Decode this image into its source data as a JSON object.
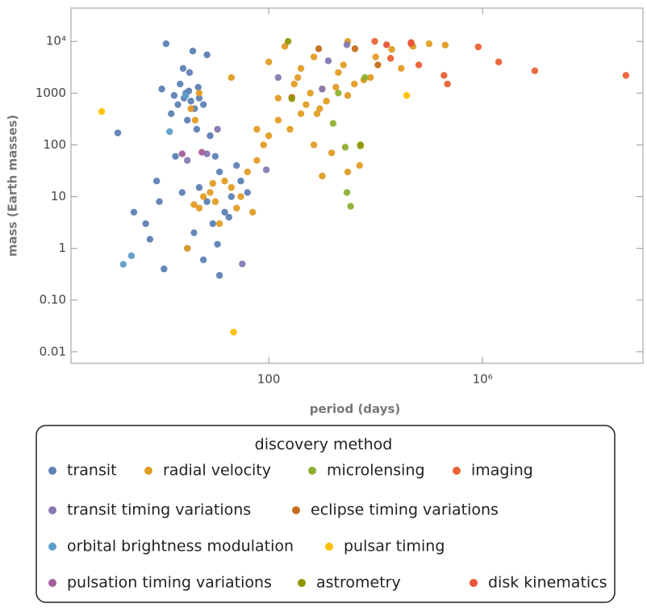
{
  "chart_data": {
    "type": "scatter",
    "xlabel": "period (days)",
    "ylabel": "mass (Earth masses)",
    "legend_title": "discovery method",
    "log_x": true,
    "log_y": true,
    "xlim": [
      0.02,
      1000000000
    ],
    "ylim": [
      0.006,
      44000
    ],
    "xticks": [
      100,
      {
        "value": 1000000,
        "label": "10⁶"
      }
    ],
    "yticks": [
      {
        "value": 0.01,
        "label": "0.01"
      },
      {
        "value": 0.1,
        "label": "0.10"
      },
      1,
      10,
      100,
      1000,
      {
        "value": 10000,
        "label": "10⁴"
      }
    ],
    "series": [
      {
        "name": "transit",
        "color": "#5e81b5",
        "x": [
          3.5,
          2.8,
          4.1,
          3.0,
          2.2,
          5.0,
          1.5,
          3.3,
          4.5,
          6,
          2.5,
          1.2,
          3.8,
          7,
          1.0,
          2.0,
          8,
          10,
          12,
          5,
          7,
          15,
          20,
          9,
          4,
          3,
          6,
          12,
          1.1,
          0.6,
          0.5,
          0.3,
          0.15,
          0.8,
          1.8,
          25,
          18,
          40,
          30,
          0.9,
          11,
          2.4,
          3.2,
          2.6,
          4.8,
          1.7
        ],
        "y": [
          700,
          1000,
          500,
          300,
          1500,
          800,
          400,
          2500,
          200,
          600,
          3000,
          9000,
          6500,
          5500,
          1200,
          600,
          150,
          60,
          30,
          15,
          8,
          5,
          10,
          3,
          2,
          1,
          0.6,
          0.3,
          0.4,
          1.5,
          3,
          5,
          170,
          20,
          60,
          40,
          4,
          12,
          20,
          8,
          1.2,
          12,
          1100,
          800,
          1300,
          900
        ]
      },
      {
        "name": "radial velocity",
        "color": "#e19c24",
        "x": [
          150,
          300,
          500,
          1000,
          2000,
          3000,
          800,
          400,
          6000,
          10000,
          20000,
          50000,
          100000,
          200000,
          150,
          250,
          80,
          60,
          40,
          20,
          10,
          5,
          8,
          15,
          30,
          50,
          3,
          4,
          12,
          100,
          700,
          1500,
          5000,
          3000,
          1000,
          3.5,
          4.2,
          5,
          20,
          100,
          200,
          3000,
          700,
          1200,
          400,
          2500,
          8000,
          30000,
          60,
          600,
          1800,
          350,
          900,
          4000,
          25,
          6,
          9
        ],
        "y": [
          800,
          1500,
          600,
          1200,
          2500,
          900,
          400,
          3000,
          1800,
          5000,
          7000,
          8000,
          9000,
          8500,
          300,
          200,
          100,
          50,
          30,
          15,
          8,
          6,
          12,
          20,
          10,
          5,
          1,
          7,
          3,
          150,
          100,
          70,
          40,
          30,
          25,
          500,
          300,
          1000,
          2000,
          4000,
          8000,
          10000,
          5000,
          700,
          400,
          3500,
          2000,
          3000,
          200,
          1000,
          1300,
          2000,
          500,
          1500,
          6,
          10,
          18
        ]
      },
      {
        "name": "microlensing",
        "color": "#8fb032",
        "x": [
          2900,
          3400,
          1600,
          2700,
          5200,
          6300,
          2000
        ],
        "y": [
          12,
          6.5,
          260,
          90,
          95,
          2000,
          1000
        ]
      },
      {
        "name": "imaging",
        "color": "#eb6235",
        "x": [
          830000,
          2000000,
          9500000,
          480000000,
          190000,
          220000,
          64000,
          46000,
          9600,
          19000
        ],
        "y": [
          7800,
          4000,
          2700,
          2200,
          2200,
          1500,
          3500,
          9000,
          10000,
          4700
        ]
      },
      {
        "name": "transit timing variations",
        "color": "#8778b3",
        "x": [
          32,
          11,
          7,
          150,
          1300,
          2900,
          1000,
          3,
          90
        ],
        "y": [
          0.5,
          200,
          67,
          2000,
          4200,
          8600,
          1200,
          50,
          33
        ]
      },
      {
        "name": "eclipse timing variations",
        "color": "#c56e1a",
        "x": [
          4100,
          11000,
          860,
          270
        ],
        "y": [
          7200,
          3500,
          7200,
          830
        ]
      },
      {
        "name": "orbital brightness modulation",
        "color": "#5d9ec7",
        "x": [
          0.19,
          0.27,
          1.4,
          2.8
        ],
        "y": [
          0.49,
          0.72,
          180,
          900
        ]
      },
      {
        "name": "pulsar timing",
        "color": "#ffbf00",
        "x": [
          0.075,
          22,
          38000
        ],
        "y": [
          440,
          0.024,
          900
        ]
      },
      {
        "name": "pulsation timing variations",
        "color": "#a5609d",
        "x": [
          2.4,
          5.6
        ],
        "y": [
          67,
          72
        ]
      },
      {
        "name": "astrometry",
        "color": "#929600",
        "x": [
          230,
          270,
          5200
        ],
        "y": [
          10000,
          780,
          100
        ]
      },
      {
        "name": "disk kinematics",
        "color": "#e95536",
        "x": [
          46000,
          16000
        ],
        "y": [
          9500,
          8600
        ]
      }
    ]
  }
}
